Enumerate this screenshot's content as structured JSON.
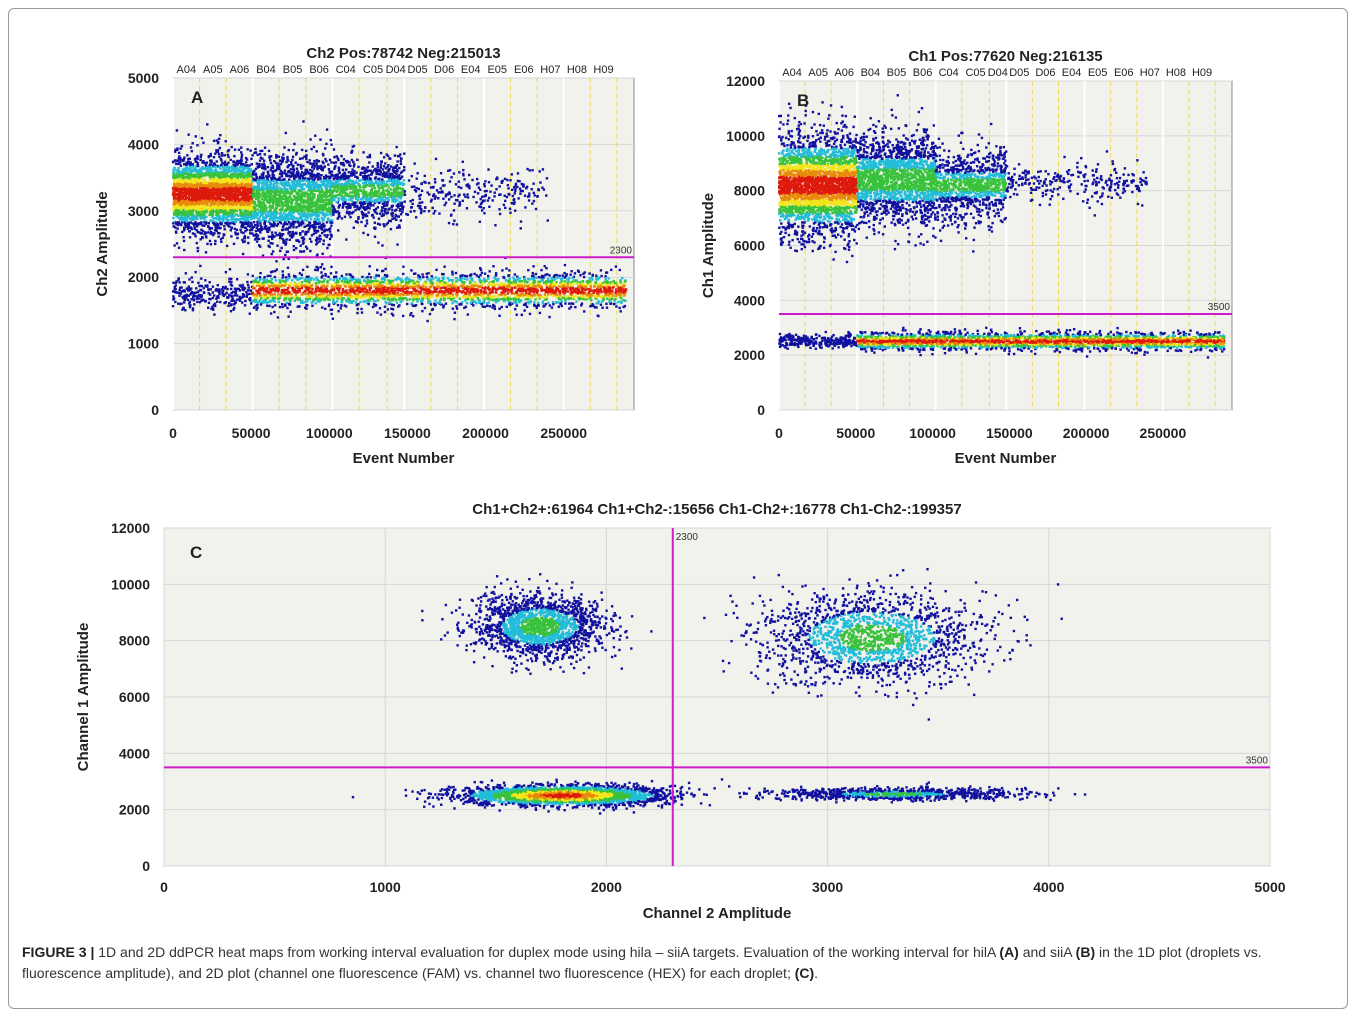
{
  "figure": {
    "caption_label": "FIGURE 3 |",
    "caption_text_1": " 1D and 2D ddPCR heat maps from working interval evaluation for duplex mode using hila – siiA targets. Evaluation of the working interval for hilA ",
    "caption_bold_a": "(A)",
    "caption_text_2": " and siiA ",
    "caption_bold_b": "(B)",
    "caption_text_3": " in the 1D plot (droplets vs. fluorescence amplitude), and 2D plot (channel one fluorescence (FAM) vs. channel two fluorescence (HEX) for each droplet; ",
    "caption_bold_c": "(C)",
    "caption_text_4": "."
  },
  "chart_data": [
    {
      "type": "scatter",
      "panel_letter": "A",
      "title": "Ch2 Pos:78742 Neg:215013",
      "xlabel": "Event Number",
      "ylabel": "Ch2 Amplitude",
      "xlim": [
        0,
        295000
      ],
      "ylim": [
        0,
        5000
      ],
      "xticks": [
        0,
        50000,
        100000,
        150000,
        200000,
        250000
      ],
      "yticks": [
        0,
        1000,
        2000,
        3000,
        4000,
        5000
      ],
      "well_labels": [
        "A04",
        "A05",
        "A06",
        "B04",
        "B05",
        "B06",
        "C04",
        "C05",
        "D04",
        "D05",
        "D06",
        "E04",
        "E05",
        "E06",
        "H07",
        "H08",
        "H09"
      ],
      "well_boundaries": [
        0,
        17000,
        34000,
        51000,
        68000,
        85000,
        102000,
        119000,
        137000,
        148000,
        165000,
        182000,
        199000,
        216000,
        233000,
        250000,
        267000,
        284000
      ],
      "threshold": 2300,
      "threshold_label": "2300",
      "positive_segments": [
        {
          "x": [
            0,
            51000
          ],
          "y": 3250,
          "spread": 280,
          "density": "high"
        },
        {
          "x": [
            51000,
            102000
          ],
          "y": 3150,
          "spread": 330,
          "density": "medium"
        },
        {
          "x": [
            102000,
            148000
          ],
          "y": 3300,
          "spread": 250,
          "density": "low"
        },
        {
          "x": [
            148000,
            240000
          ],
          "y": 3250,
          "spread": 180,
          "density": "sparse"
        }
      ],
      "negative_segments": [
        {
          "x": [
            0,
            51000
          ],
          "y": 1750,
          "spread": 120,
          "density": "sparse"
        },
        {
          "x": [
            51000,
            290000
          ],
          "y": 1800,
          "spread": 130,
          "density": "high"
        }
      ]
    },
    {
      "type": "scatter",
      "panel_letter": "B",
      "title": "Ch1 Pos:77620 Neg:216135",
      "xlabel": "Event Number",
      "ylabel": "Ch1 Amplitude",
      "xlim": [
        0,
        295000
      ],
      "ylim": [
        0,
        12000
      ],
      "xticks": [
        0,
        50000,
        100000,
        150000,
        200000,
        250000
      ],
      "yticks": [
        0,
        2000,
        4000,
        6000,
        8000,
        10000,
        12000
      ],
      "well_labels": [
        "A04",
        "A05",
        "A06",
        "B04",
        "B05",
        "B06",
        "C04",
        "C05",
        "D04",
        "D05",
        "D06",
        "E04",
        "E05",
        "E06",
        "H07",
        "H08",
        "H09"
      ],
      "well_boundaries": [
        0,
        17000,
        34000,
        51000,
        68000,
        85000,
        102000,
        119000,
        137000,
        148000,
        165000,
        182000,
        199000,
        216000,
        233000,
        250000,
        267000,
        284000
      ],
      "threshold": 3500,
      "threshold_label": "3500",
      "positive_segments": [
        {
          "x": [
            0,
            51000
          ],
          "y": 8200,
          "spread": 900,
          "density": "high"
        },
        {
          "x": [
            51000,
            102000
          ],
          "y": 8400,
          "spread": 800,
          "density": "medium"
        },
        {
          "x": [
            102000,
            148000
          ],
          "y": 8200,
          "spread": 650,
          "density": "low"
        },
        {
          "x": [
            148000,
            240000
          ],
          "y": 8300,
          "spread": 350,
          "density": "sparse"
        }
      ],
      "negative_segments": [
        {
          "x": [
            0,
            51000
          ],
          "y": 2500,
          "spread": 120,
          "density": "sparse"
        },
        {
          "x": [
            51000,
            290000
          ],
          "y": 2500,
          "spread": 160,
          "density": "high"
        }
      ]
    },
    {
      "type": "scatter",
      "panel_letter": "C",
      "title": "Ch1+Ch2+:61964  Ch1+Ch2-:15656  Ch1-Ch2+:16778  Ch1-Ch2-:199357",
      "xlabel": "Channel 2 Amplitude",
      "ylabel": "Channel 1 Amplitude",
      "xlim": [
        0,
        5000
      ],
      "ylim": [
        0,
        12000
      ],
      "xticks": [
        0,
        1000,
        2000,
        3000,
        4000,
        5000
      ],
      "yticks": [
        0,
        2000,
        4000,
        6000,
        8000,
        10000,
        12000
      ],
      "threshold_x": 2300,
      "threshold_x_label": "2300",
      "threshold_y": 3500,
      "threshold_y_label": "3500",
      "clusters": [
        {
          "name_hidden": "Ch1+Ch2-",
          "cx": 1700,
          "cy": 8500,
          "sx": 150,
          "sy": 550,
          "density": "medium"
        },
        {
          "name_hidden": "Ch1+Ch2+",
          "cx": 3200,
          "cy": 8100,
          "sx": 250,
          "sy": 800,
          "density": "medium"
        },
        {
          "name_hidden": "Ch1-Ch2-",
          "cx": 1800,
          "cy": 2500,
          "sx": 230,
          "sy": 180,
          "density": "high"
        },
        {
          "name_hidden": "Ch1-Ch2+",
          "cx": 3300,
          "cy": 2550,
          "sx": 280,
          "sy": 110,
          "density": "low"
        }
      ]
    }
  ],
  "colors": {
    "plot_bg": "#f2f2ed",
    "grid": "#d6d6d6",
    "well_divider": "#ecd95a",
    "threshold": "#cc1ccc",
    "droplet_blue": "#11119f",
    "frame": "#9a9a9a"
  }
}
